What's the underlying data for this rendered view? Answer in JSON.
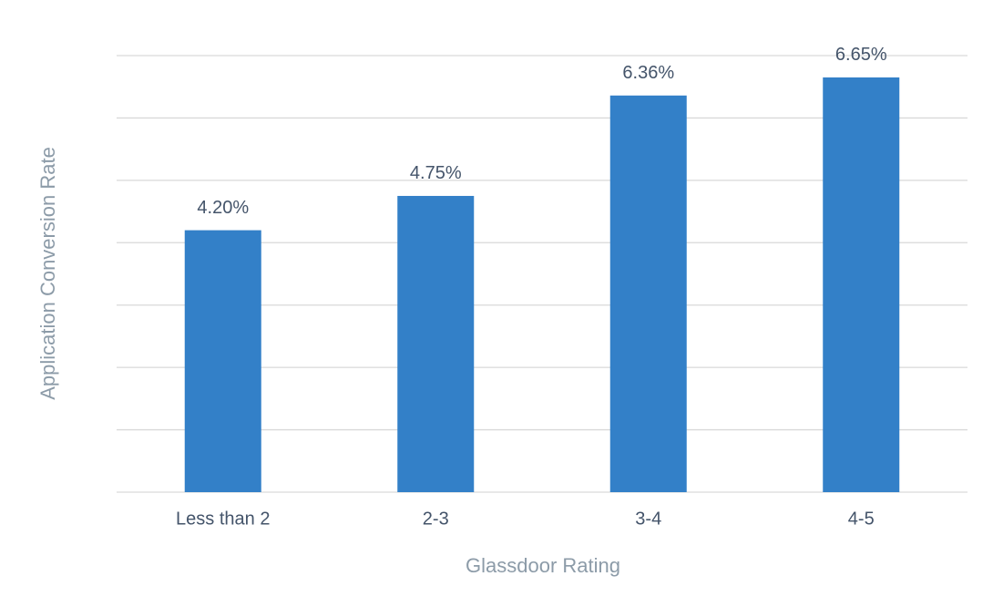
{
  "chart_data": {
    "type": "bar",
    "x_label": "Glassdoor Rating",
    "y_label": "Application Conversion Rate",
    "categories": [
      "Less than 2",
      "2-3",
      "3-4",
      "4-5"
    ],
    "values": [
      4.2,
      4.75,
      6.36,
      6.65
    ],
    "value_labels": [
      "4.20%",
      "4.75%",
      "6.36%",
      "6.65%"
    ],
    "color": "#3380c8",
    "ylim": [
      0,
      7
    ],
    "yticks": [
      0,
      1,
      2,
      3,
      4,
      5,
      6,
      7
    ],
    "grid": true
  }
}
